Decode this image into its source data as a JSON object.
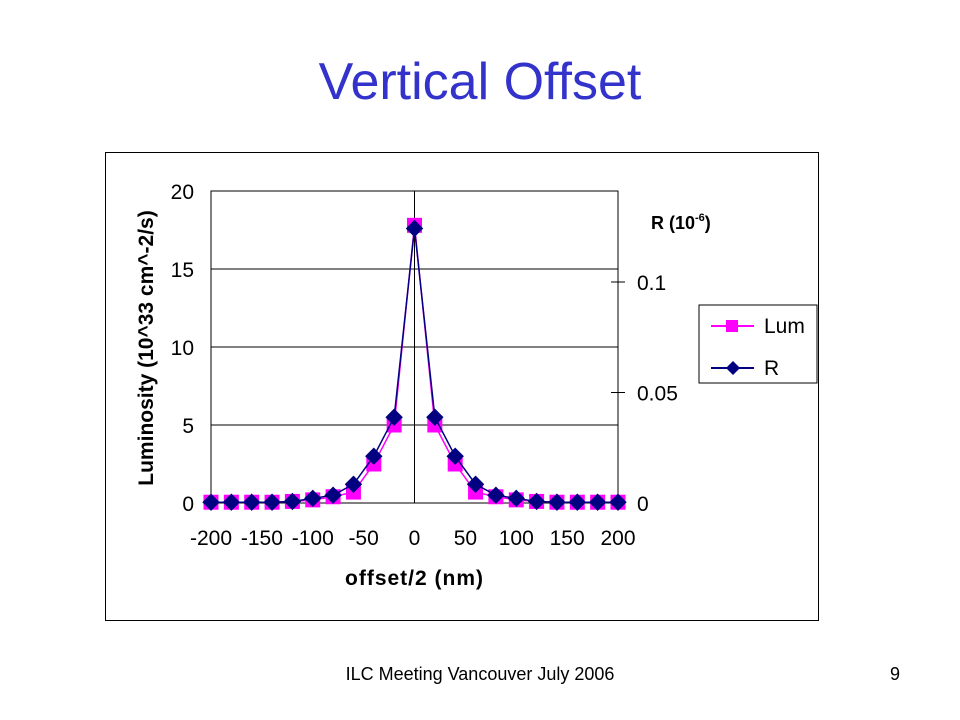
{
  "slide": {
    "title": "Vertical Offset",
    "footer": "ILC Meeting Vancouver July 2006",
    "page_number": "9"
  },
  "colors": {
    "title": "#3333cc",
    "lum_series": "#ff00ff",
    "r_series": "#000080",
    "axis": "#000000"
  },
  "chart_data": {
    "type": "line",
    "xlabel": "offset/2 (nm)",
    "ylabel": "Luminosity (10^33 cm^-2/s)",
    "y2label_base": "R (10",
    "y2label_exp": "-6",
    "y2label_close": ")",
    "xlim": [
      -200,
      200
    ],
    "ylim": [
      0,
      20
    ],
    "y2lim": [
      0,
      0.1
    ],
    "xticks": [
      "-200",
      "-150",
      "-100",
      "-50",
      "0",
      "50",
      "100",
      "150",
      "200"
    ],
    "yticks": [
      "0",
      "5",
      "10",
      "15",
      "20"
    ],
    "y2ticks": [
      "0",
      "0.05",
      "0.1"
    ],
    "grid": "horizontal",
    "legend_position": "right",
    "x": [
      -200,
      -180,
      -160,
      -140,
      -120,
      -100,
      -80,
      -60,
      -40,
      -20,
      0,
      20,
      40,
      60,
      80,
      100,
      120,
      140,
      160,
      180,
      200
    ],
    "series": [
      {
        "name": "Lum",
        "axis": "left",
        "marker": "square",
        "values": [
          0.05,
          0.05,
          0.05,
          0.05,
          0.1,
          0.2,
          0.4,
          0.7,
          2.5,
          5.0,
          17.8,
          5.0,
          2.5,
          0.7,
          0.4,
          0.2,
          0.1,
          0.05,
          0.05,
          0.05,
          0.05
        ]
      },
      {
        "name": "R",
        "axis": "left",
        "marker": "diamond",
        "values": [
          0.05,
          0.05,
          0.05,
          0.05,
          0.1,
          0.3,
          0.5,
          1.2,
          3.0,
          5.5,
          17.6,
          5.5,
          3.0,
          1.2,
          0.5,
          0.3,
          0.1,
          0.05,
          0.05,
          0.05,
          0.05
        ]
      }
    ]
  }
}
